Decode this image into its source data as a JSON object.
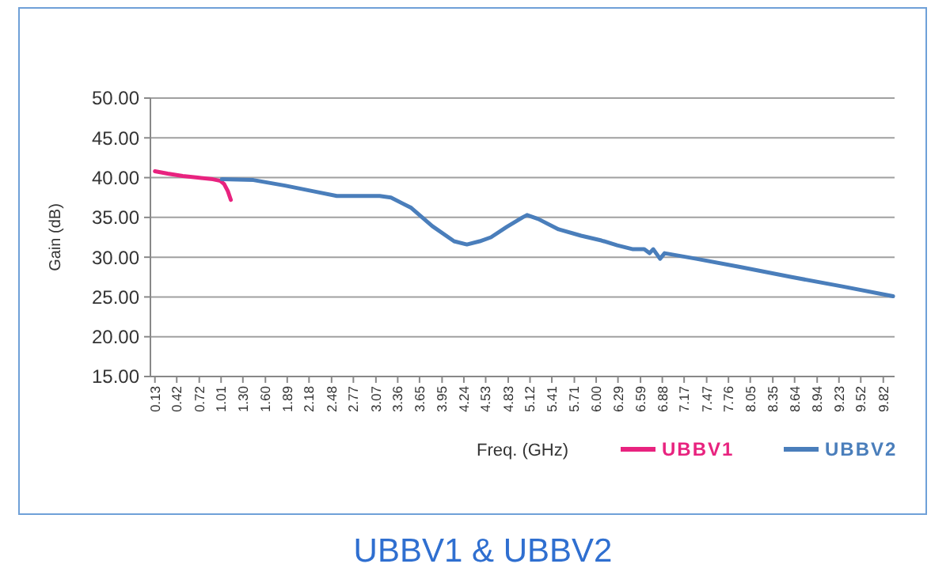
{
  "chart_data": {
    "type": "line",
    "title": "UBBV1  &  UBBV2",
    "xlabel": "Freq. (GHz)",
    "ylabel": "Gain (dB)",
    "xlim": [
      0.07,
      9.97
    ],
    "ylim": [
      15,
      50
    ],
    "xticks": [
      {
        "value": 0.13,
        "label": "0.13"
      },
      {
        "value": 0.42,
        "label": "0.42"
      },
      {
        "value": 0.72,
        "label": "0.72"
      },
      {
        "value": 1.01,
        "label": "1.01"
      },
      {
        "value": 1.3,
        "label": "1.30"
      },
      {
        "value": 1.6,
        "label": "1.60"
      },
      {
        "value": 1.89,
        "label": "1.89"
      },
      {
        "value": 2.18,
        "label": "2.18"
      },
      {
        "value": 2.48,
        "label": "2.48"
      },
      {
        "value": 2.77,
        "label": "2.77"
      },
      {
        "value": 3.07,
        "label": "3.07"
      },
      {
        "value": 3.36,
        "label": "3.36"
      },
      {
        "value": 3.65,
        "label": "3.65"
      },
      {
        "value": 3.95,
        "label": "3.95"
      },
      {
        "value": 4.24,
        "label": "4.24"
      },
      {
        "value": 4.53,
        "label": "4.53"
      },
      {
        "value": 4.83,
        "label": "4.83"
      },
      {
        "value": 5.12,
        "label": "5.12"
      },
      {
        "value": 5.41,
        "label": "5.41"
      },
      {
        "value": 5.71,
        "label": "5.71"
      },
      {
        "value": 6,
        "label": "6.00"
      },
      {
        "value": 6.29,
        "label": "6.29"
      },
      {
        "value": 6.59,
        "label": "6.59"
      },
      {
        "value": 6.88,
        "label": "6.88"
      },
      {
        "value": 7.17,
        "label": "7.17"
      },
      {
        "value": 7.47,
        "label": "7.47"
      },
      {
        "value": 7.76,
        "label": "7.76"
      },
      {
        "value": 8.05,
        "label": "8.05"
      },
      {
        "value": 8.35,
        "label": "8.35"
      },
      {
        "value": 8.64,
        "label": "8.64"
      },
      {
        "value": 8.94,
        "label": "8.94"
      },
      {
        "value": 9.23,
        "label": "9.23"
      },
      {
        "value": 9.52,
        "label": "9.52"
      },
      {
        "value": 9.82,
        "label": "9.82"
      }
    ],
    "yticks": [
      {
        "value": 15,
        "label": "15.00"
      },
      {
        "value": 20,
        "label": "20.00"
      },
      {
        "value": 25,
        "label": "25.00"
      },
      {
        "value": 30,
        "label": "30.00"
      },
      {
        "value": 35,
        "label": "35.00"
      },
      {
        "value": 40,
        "label": "40.00"
      },
      {
        "value": 45,
        "label": "45.00"
      },
      {
        "value": 50,
        "label": "50.00"
      }
    ],
    "grid": "y",
    "legend": "bottom right",
    "marker": "none",
    "line_style": "solid",
    "series": [
      {
        "name": "UBBV1",
        "color": "#e8237f",
        "x": [
          0.13,
          0.3,
          0.5,
          0.7,
          0.9,
          1.0,
          1.05,
          1.1,
          1.14
        ],
        "values": [
          40.8,
          40.5,
          40.2,
          40.0,
          39.8,
          39.6,
          39.2,
          38.3,
          37.2
        ]
      },
      {
        "name": "UBBV2",
        "color": "#4a7ebb",
        "x": [
          1.02,
          1.44,
          1.86,
          2.28,
          2.55,
          3.12,
          3.27,
          3.54,
          3.82,
          4.11,
          4.28,
          4.45,
          4.6,
          4.81,
          5.02,
          5.08,
          5.23,
          5.5,
          5.8,
          6.07,
          6.28,
          6.49,
          6.64,
          6.71,
          6.76,
          6.85,
          6.91,
          7.33,
          7.9,
          8.6,
          9.29,
          9.95
        ],
        "values": [
          39.8,
          39.7,
          39.0,
          38.2,
          37.7,
          37.7,
          37.5,
          36.2,
          33.9,
          32.0,
          31.6,
          32.0,
          32.5,
          33.8,
          35.0,
          35.3,
          34.8,
          33.5,
          32.7,
          32.1,
          31.5,
          31.0,
          31.0,
          30.5,
          31.0,
          29.8,
          30.5,
          29.8,
          28.8,
          27.5,
          26.3,
          25.1
        ]
      }
    ]
  }
}
